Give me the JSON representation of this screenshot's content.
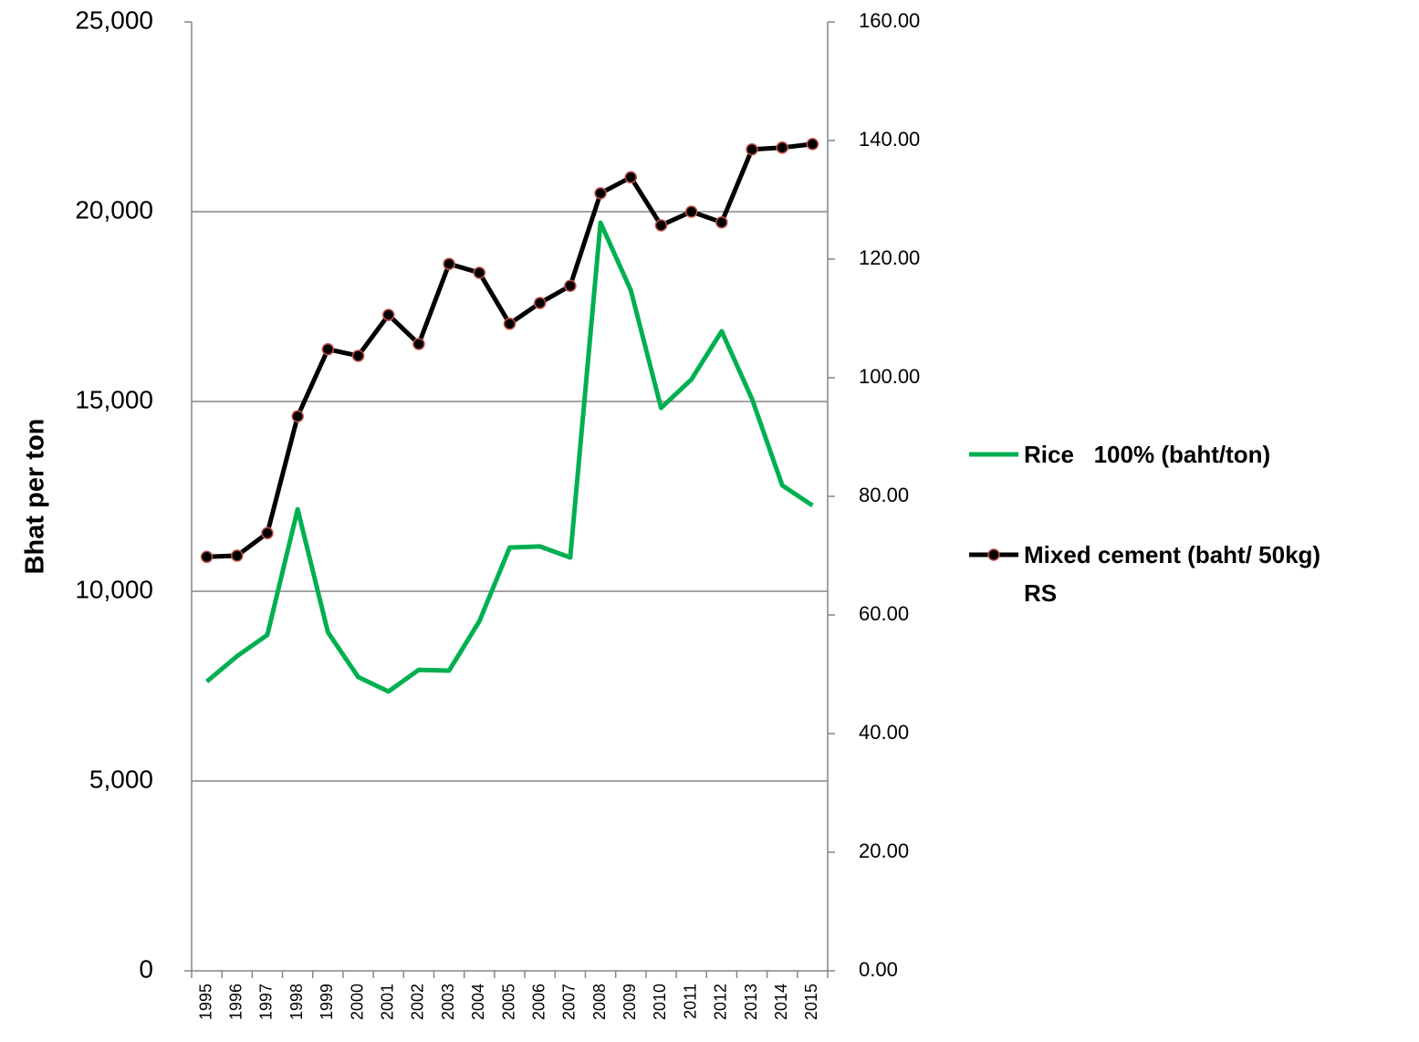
{
  "chart_data": {
    "type": "line",
    "y_label": "Bhat per ton",
    "categories": [
      "1995",
      "1996",
      "1997",
      "1998",
      "1999",
      "2000",
      "2001",
      "2002",
      "2003",
      "2004",
      "2005",
      "2006",
      "2007",
      "2008",
      "2009",
      "2010",
      "2011",
      "2012",
      "2013",
      "2014",
      "2015"
    ],
    "series": [
      {
        "name": "Rice   100% (baht/ton)",
        "color": "#00b050",
        "values": [
          7620,
          8290,
          8850,
          12160,
          8920,
          7740,
          7360,
          7930,
          7910,
          9210,
          11150,
          11180,
          10890,
          19710,
          17930,
          14830,
          15580,
          16850,
          15070,
          12790,
          12260
        ]
      },
      {
        "name": "Mixed cement (baht/ 50kg) RS",
        "color": "#000000",
        "marker_edge_color": "#c0504d",
        "axis": "y2",
        "values": [
          69.8,
          70.0,
          73.8,
          93.5,
          104.8,
          103.7,
          110.6,
          105.7,
          119.2,
          117.7,
          109.1,
          112.6,
          115.5,
          131.1,
          133.8,
          125.7,
          128.0,
          126.2,
          138.5,
          138.8,
          139.4
        ]
      }
    ],
    "ylim": [
      0,
      25000
    ],
    "yticks": [
      {
        "value": 0,
        "label": "0"
      },
      {
        "value": 5000,
        "label": "5,000"
      },
      {
        "value": 10000,
        "label": "10,000"
      },
      {
        "value": 15000,
        "label": "15,000"
      },
      {
        "value": 20000,
        "label": "20,000"
      },
      {
        "value": 25000,
        "label": "25,000"
      }
    ],
    "y2lim": [
      0,
      160
    ],
    "y2ticks": [
      {
        "value": 0,
        "label": "0.00"
      },
      {
        "value": 20,
        "label": "20.00"
      },
      {
        "value": 40,
        "label": "40.00"
      },
      {
        "value": 60,
        "label": "60.00"
      },
      {
        "value": 80,
        "label": "80.00"
      },
      {
        "value": 100,
        "label": "100.00"
      },
      {
        "value": 120,
        "label": "120.00"
      },
      {
        "value": 140,
        "label": "140.00"
      },
      {
        "value": 160,
        "label": "160.00"
      }
    ],
    "grid": true,
    "legend": "right"
  }
}
